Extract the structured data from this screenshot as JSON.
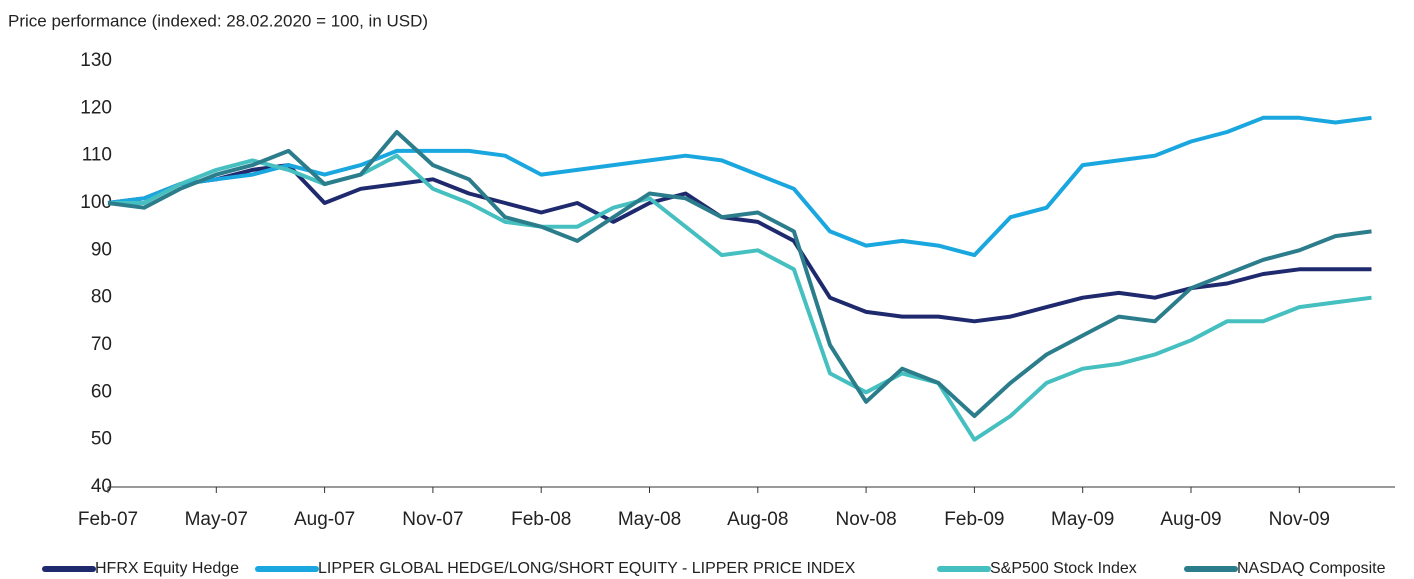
{
  "chart_data": {
    "type": "line",
    "title": "Price performance (indexed: 28.02.2020 = 100, in USD)",
    "categories": [
      "Feb-07",
      null,
      null,
      "May-07",
      null,
      null,
      "Aug-07",
      null,
      null,
      "Nov-07",
      null,
      null,
      "Feb-08",
      null,
      null,
      "May-08",
      null,
      null,
      "Aug-08",
      null,
      null,
      "Nov-08",
      null,
      null,
      "Feb-09",
      null,
      null,
      "May-09",
      null,
      null,
      "Aug-09",
      null,
      null,
      "Nov-09",
      null,
      null
    ],
    "series": [
      {
        "name": "HFRX Equity Hedge",
        "color": "#1f2a6e",
        "values": [
          100,
          101,
          104,
          105,
          107,
          108,
          100,
          103,
          104,
          105,
          102,
          100,
          98,
          100,
          96,
          100,
          102,
          97,
          96,
          92,
          80,
          77,
          76,
          76,
          75,
          76,
          78,
          80,
          81,
          80,
          82,
          83,
          85,
          86,
          86,
          86
        ]
      },
      {
        "name": "LIPPER GLOBAL HEDGE/LONG/SHORT EQUITY - LIPPER PRICE INDEX",
        "color": "#1aa7df",
        "values": [
          100,
          101,
          104,
          105,
          106,
          108,
          106,
          108,
          111,
          111,
          111,
          110,
          106,
          107,
          108,
          109,
          110,
          109,
          106,
          103,
          94,
          91,
          92,
          91,
          89,
          97,
          99,
          108,
          109,
          110,
          113,
          115,
          118,
          118,
          117,
          118
        ]
      },
      {
        "name": "S&P500  Stock Index",
        "color": "#45bfbf",
        "values": [
          100,
          100,
          104,
          107,
          109,
          107,
          104,
          106,
          110,
          103,
          100,
          96,
          95,
          95,
          99,
          101,
          95,
          89,
          90,
          86,
          64,
          60,
          64,
          62,
          50,
          55,
          62,
          65,
          66,
          68,
          71,
          75,
          75,
          78,
          79,
          80
        ]
      },
      {
        "name": "NASDAQ Composite",
        "color": "#2c7d8c",
        "values": [
          100,
          99,
          103,
          106,
          108,
          111,
          104,
          106,
          115,
          108,
          105,
          97,
          95,
          92,
          97,
          102,
          101,
          97,
          98,
          94,
          70,
          58,
          65,
          62,
          55,
          62,
          68,
          72,
          76,
          75,
          82,
          85,
          88,
          90,
          93,
          94
        ]
      }
    ],
    "ylim": [
      40,
      130
    ],
    "yticks": [
      40,
      50,
      60,
      70,
      80,
      90,
      100,
      110,
      120,
      130
    ],
    "grid": false,
    "legend": "bottom"
  }
}
